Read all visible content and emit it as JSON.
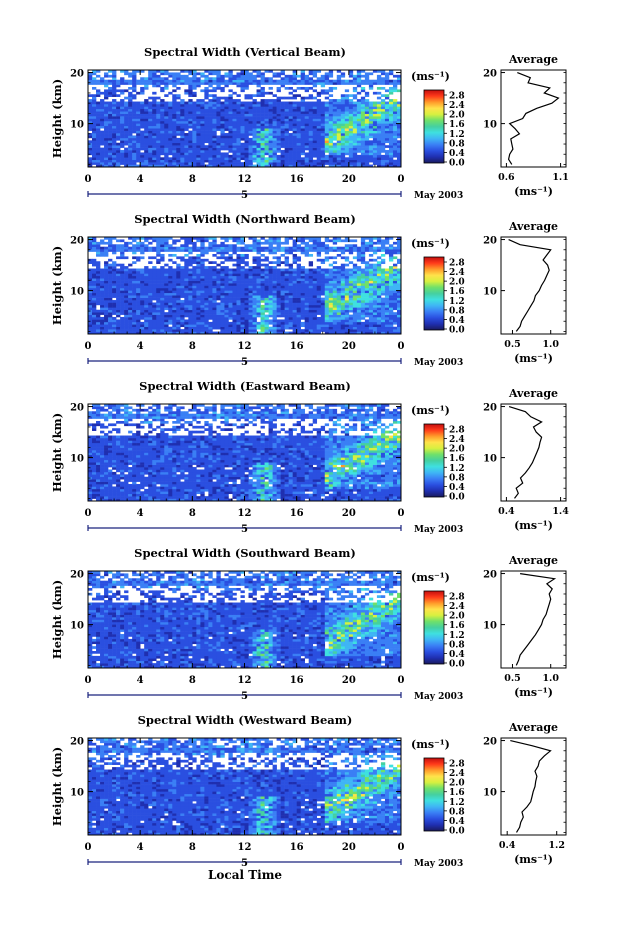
{
  "colors": {
    "colorbar_stops": [
      "#1a1a5e",
      "#1f2fb0",
      "#2a4fe0",
      "#3a7ff5",
      "#3fb5f5",
      "#3fe0e0",
      "#45d0a0",
      "#6fe06a",
      "#d8f040",
      "#ffe24a",
      "#ff9a2a",
      "#ff3a1a",
      "#c40e0e"
    ],
    "profile_line": "#000000",
    "frame": "#000000"
  },
  "shared": {
    "x_label": "Local Time",
    "x_ticks": [
      "0",
      "4",
      "8",
      "12",
      "16",
      "20",
      "0"
    ],
    "y_ticks": [
      "20",
      "10"
    ],
    "y_label": "Height (km)",
    "date_label": "May 2003",
    "day_marker": "5",
    "colorbar_unit": "(ms⁻¹)",
    "colorbar_ticks": [
      "2.8",
      "2.4",
      "2.0",
      "1.6",
      "1.2",
      "0.8",
      "0.4",
      "0.0"
    ],
    "average_title": "Average",
    "average_xlabel": "(ms⁻¹)"
  },
  "chart_data": [
    {
      "type": "heatmap",
      "title": "Spectral Width (Vertical Beam)",
      "x_range": [
        0,
        24
      ],
      "y_range": [
        1.5,
        20.5
      ],
      "value_range": [
        0,
        3
      ],
      "profile": {
        "x_ticks": [
          "0.6",
          "1.1"
        ],
        "xlim": [
          0.55,
          1.15
        ],
        "heights": [
          2,
          3,
          4,
          5,
          6,
          7,
          8,
          9,
          10,
          11,
          12,
          13,
          14,
          15,
          16,
          17,
          18,
          19,
          20
        ],
        "values": [
          0.65,
          0.62,
          0.63,
          0.66,
          0.65,
          0.64,
          0.72,
          0.68,
          0.63,
          0.75,
          0.78,
          0.88,
          1.02,
          1.08,
          0.95,
          1.0,
          0.8,
          0.82,
          0.7
        ]
      }
    },
    {
      "type": "heatmap",
      "title": "Spectral Width (Northward Beam)",
      "x_range": [
        0,
        24
      ],
      "y_range": [
        1.5,
        20.5
      ],
      "value_range": [
        0,
        3
      ],
      "profile": {
        "x_ticks": [
          "0.5",
          "1.0"
        ],
        "xlim": [
          0.35,
          1.2
        ],
        "heights": [
          2,
          3,
          4,
          5,
          6,
          7,
          8,
          9,
          10,
          11,
          12,
          13,
          14,
          15,
          16,
          17,
          18,
          19,
          20
        ],
        "values": [
          0.55,
          0.6,
          0.62,
          0.66,
          0.7,
          0.74,
          0.78,
          0.8,
          0.85,
          0.88,
          0.92,
          0.95,
          0.98,
          0.96,
          0.9,
          0.95,
          1.0,
          0.6,
          0.45
        ]
      }
    },
    {
      "type": "heatmap",
      "title": "Spectral Width (Eastward Beam)",
      "x_range": [
        0,
        24
      ],
      "y_range": [
        1.5,
        20.5
      ],
      "value_range": [
        0,
        3
      ],
      "profile": {
        "x_ticks": [
          "0.4",
          "1.4"
        ],
        "xlim": [
          0.3,
          1.5
        ],
        "heights": [
          2,
          3,
          4,
          5,
          6,
          7,
          8,
          9,
          10,
          11,
          12,
          13,
          14,
          15,
          16,
          17,
          18,
          19,
          20
        ],
        "values": [
          0.55,
          0.62,
          0.58,
          0.7,
          0.66,
          0.75,
          0.82,
          0.88,
          0.92,
          0.96,
          1.0,
          1.02,
          1.05,
          0.95,
          0.9,
          1.05,
          0.85,
          0.75,
          0.45
        ]
      }
    },
    {
      "type": "heatmap",
      "title": "Spectral Width (Southward Beam)",
      "x_range": [
        0,
        24
      ],
      "y_range": [
        1.5,
        20.5
      ],
      "value_range": [
        0,
        3
      ],
      "profile": {
        "x_ticks": [
          "0.5",
          "1.0"
        ],
        "xlim": [
          0.35,
          1.2
        ],
        "heights": [
          2,
          3,
          4,
          5,
          6,
          7,
          8,
          9,
          10,
          11,
          12,
          13,
          14,
          15,
          16,
          17,
          18,
          19,
          20
        ],
        "values": [
          0.55,
          0.58,
          0.6,
          0.65,
          0.7,
          0.75,
          0.8,
          0.84,
          0.88,
          0.9,
          0.94,
          0.96,
          0.98,
          1.0,
          0.98,
          1.02,
          0.95,
          1.05,
          0.6
        ]
      }
    },
    {
      "type": "heatmap",
      "title": "Spectral Width (Westward Beam)",
      "x_range": [
        0,
        24
      ],
      "y_range": [
        1.5,
        20.5
      ],
      "value_range": [
        0,
        3
      ],
      "profile": {
        "x_ticks": [
          "0.4",
          "1.2"
        ],
        "xlim": [
          0.3,
          1.35
        ],
        "heights": [
          2,
          3,
          4,
          5,
          6,
          7,
          8,
          9,
          10,
          11,
          12,
          13,
          14,
          15,
          16,
          17,
          18,
          19,
          20
        ],
        "values": [
          0.55,
          0.6,
          0.62,
          0.66,
          0.64,
          0.72,
          0.78,
          0.8,
          0.82,
          0.85,
          0.86,
          0.88,
          0.85,
          0.9,
          0.92,
          1.0,
          1.1,
          0.8,
          0.45
        ]
      }
    }
  ]
}
